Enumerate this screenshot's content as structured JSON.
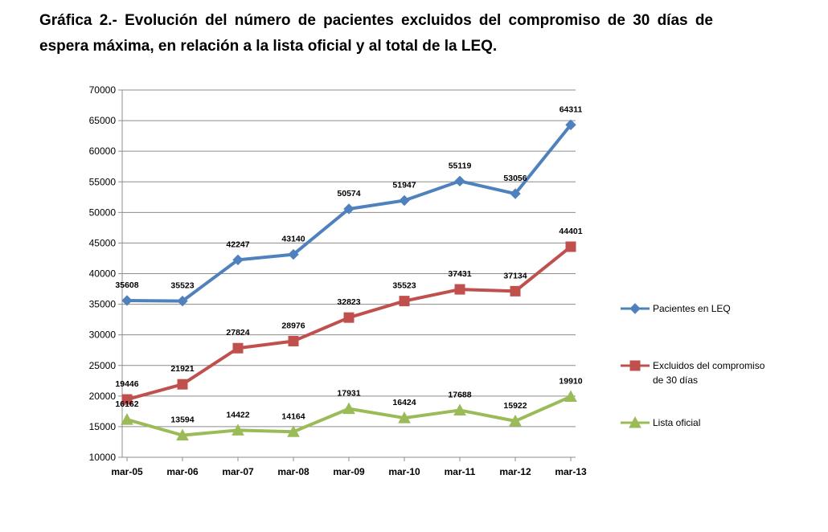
{
  "title": "Gráfica 2.- Evolución del número de pacientes excluidos del compromiso de 30 días de espera máxima, en relación a la lista oficial y al total de la LEQ.",
  "chart_data": {
    "type": "line",
    "categories": [
      "mar-05",
      "mar-06",
      "mar-07",
      "mar-08",
      "mar-09",
      "mar-10",
      "mar-11",
      "mar-12",
      "mar-13"
    ],
    "ylim": [
      10000,
      70000
    ],
    "yticks": [
      10000,
      15000,
      20000,
      25000,
      30000,
      35000,
      40000,
      45000,
      50000,
      55000,
      60000,
      65000,
      70000
    ],
    "grid": true,
    "legend_position": "right",
    "series": [
      {
        "name": "Pacientes en LEQ",
        "marker": "diamond",
        "color": "#4F81BD",
        "values": [
          35608,
          35523,
          42247,
          43140,
          50574,
          51947,
          55119,
          53056,
          64311
        ]
      },
      {
        "name": "Excluidos del compromiso de 30 días",
        "marker": "square",
        "color": "#C0504D",
        "values": [
          19446,
          21921,
          27824,
          28976,
          32823,
          35523,
          37431,
          37134,
          44401
        ]
      },
      {
        "name": "Lista oficial",
        "marker": "triangle",
        "color": "#9BBB59",
        "values": [
          16162,
          13594,
          14422,
          14164,
          17931,
          16424,
          17688,
          15922,
          19910
        ]
      }
    ]
  }
}
